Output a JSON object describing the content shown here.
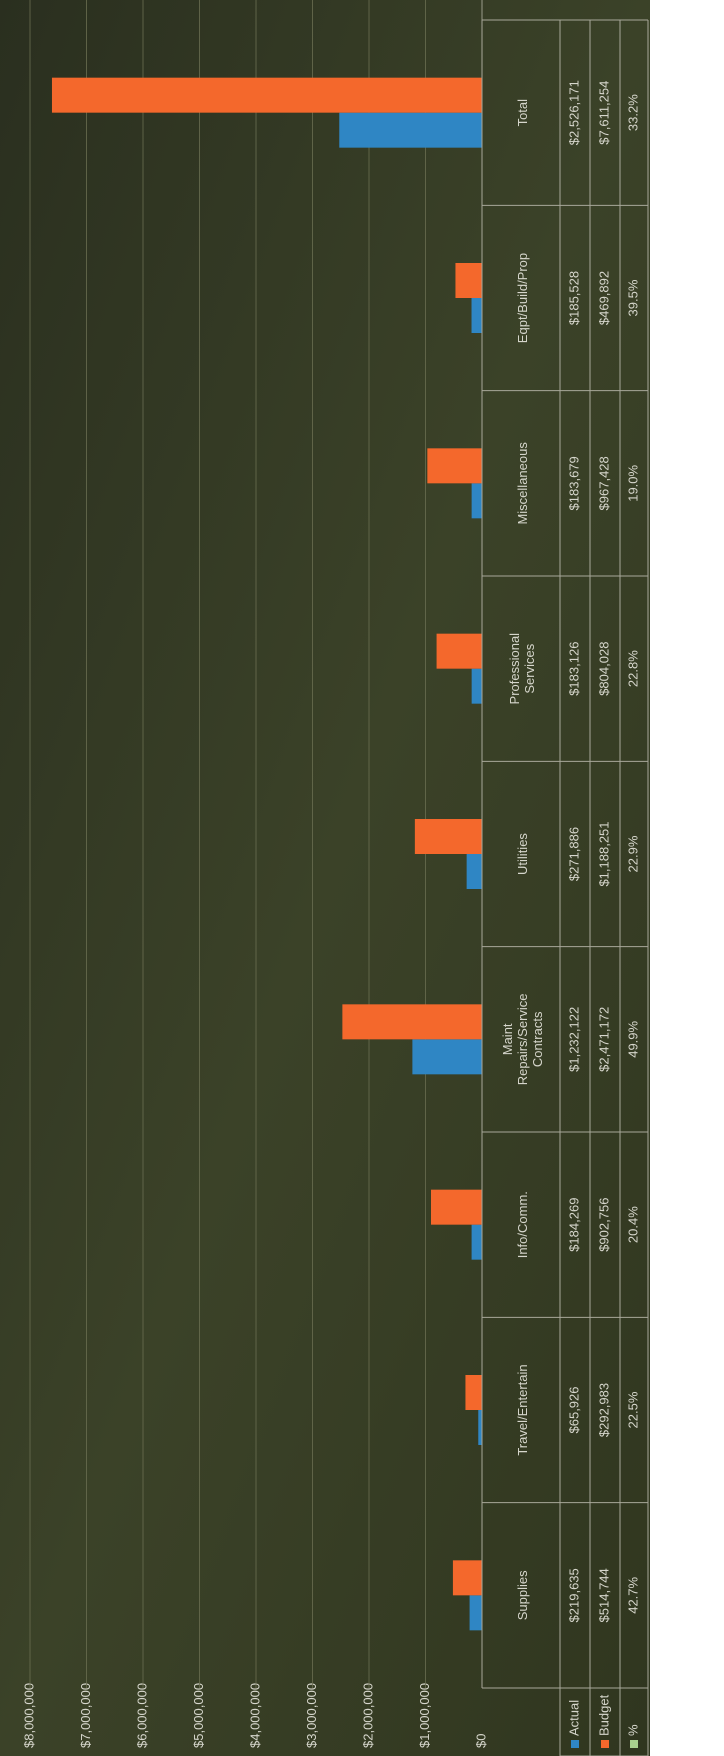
{
  "chart_data": {
    "type": "bar",
    "categories": [
      "Supplies",
      "Travel/Entertain",
      "Info/Comm.",
      "Maint Repairs/Service Contracts",
      "Utilities",
      "Professional Services",
      "Miscellaneous",
      "Eqpt/Build/Prop",
      "Total"
    ],
    "series": [
      {
        "name": "Actual",
        "color": "#2f86c4",
        "values": [
          219635,
          65926,
          184269,
          1232122,
          271886,
          183126,
          183679,
          185528,
          2526171
        ],
        "value_labels": [
          "$219,635",
          "$65,926",
          "$184,269",
          "$1,232,122",
          "$271,886",
          "$183,126",
          "$183,679",
          "$185,528",
          "$2,526,171"
        ]
      },
      {
        "name": "Budget",
        "color": "#f4682c",
        "values": [
          514744,
          292983,
          902756,
          2471172,
          1188251,
          804028,
          967428,
          469892,
          7611254
        ],
        "value_labels": [
          "$514,744",
          "$292,983",
          "$902,756",
          "$2,471,172",
          "$1,188,251",
          "$804,028",
          "$967,428",
          "$469,892",
          "$7,611,254"
        ]
      },
      {
        "name": "%",
        "color": "#a9d08e",
        "table_only": true,
        "values": [
          42.7,
          22.5,
          20.4,
          49.9,
          22.9,
          22.8,
          19.0,
          39.5,
          33.2
        ],
        "value_labels": [
          "42.7%",
          "22.5%",
          "20.4%",
          "49.9%",
          "22.9%",
          "22.8%",
          "19.0%",
          "39.5%",
          "33.2%"
        ]
      }
    ],
    "ylim": [
      0,
      8000000
    ],
    "yticks": [
      {
        "value": 0,
        "label": "$0"
      },
      {
        "value": 1000000,
        "label": "$1,000,000"
      },
      {
        "value": 2000000,
        "label": "$2,000,000"
      },
      {
        "value": 3000000,
        "label": "$3,000,000"
      },
      {
        "value": 4000000,
        "label": "$4,000,000"
      },
      {
        "value": 5000000,
        "label": "$5,000,000"
      },
      {
        "value": 6000000,
        "label": "$6,000,000"
      },
      {
        "value": 7000000,
        "label": "$7,000,000"
      },
      {
        "value": 8000000,
        "label": "$8,000,000"
      }
    ],
    "grid": true,
    "data_table": true
  }
}
